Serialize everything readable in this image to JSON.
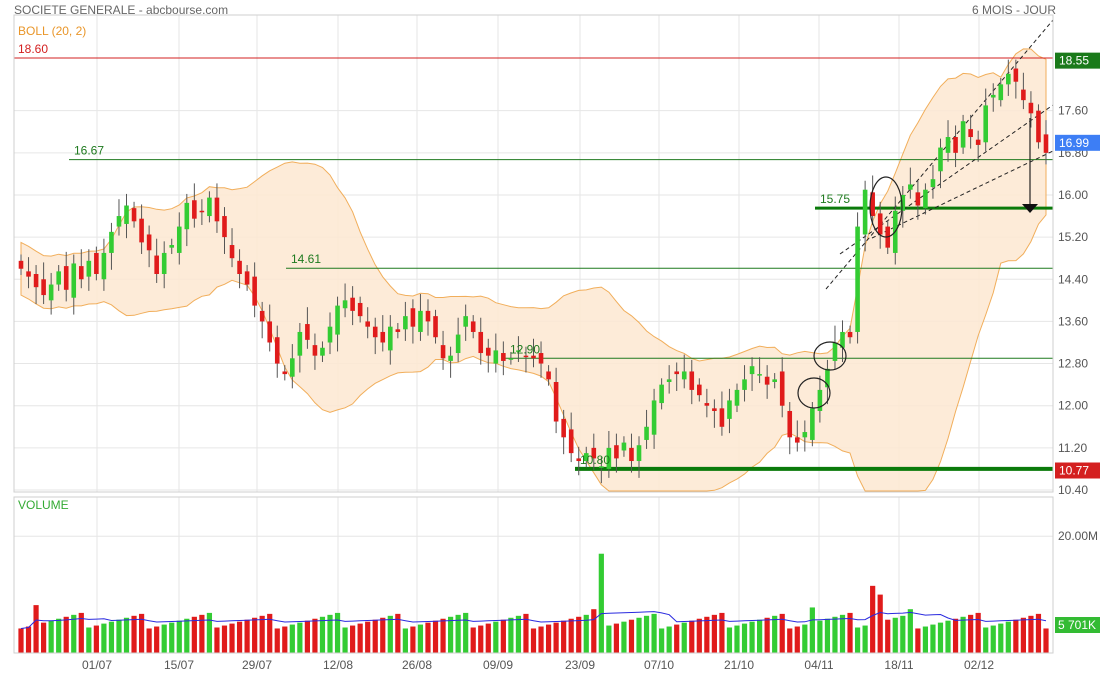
{
  "header": {
    "title": "SOCIETE GENERALE - abcbourse.com",
    "period": "6 MOIS - JOUR"
  },
  "colors": {
    "up": "#33cc33",
    "down": "#e01b1b",
    "band_fill": "#fde9d4",
    "band_line": "#f0a64a",
    "level_line": "#1f7a1f",
    "resistance": "#d32020",
    "volume_ma": "#2a2adf",
    "price_box": "#3d7ef5",
    "support_box": "#d42020"
  },
  "chart_data": [
    {
      "type": "candlestick",
      "indicator_label": "BOLL (20, 2)",
      "x_tick_labels": [
        "01/07",
        "15/07",
        "29/07",
        "12/08",
        "26/08",
        "09/09",
        "23/09",
        "07/10",
        "21/10",
        "04/11",
        "18/11",
        "02/12"
      ],
      "y_ticks": [
        10.4,
        11.2,
        12.0,
        12.8,
        13.6,
        14.4,
        15.2,
        16.0,
        16.8,
        17.6
      ],
      "y_tick_labels": [
        "10.40",
        "11.20",
        "12.00",
        "12.80",
        "13.60",
        "14.40",
        "15.20",
        "16.00",
        "16.80",
        "17.60"
      ],
      "ylim": [
        10.4,
        18.8
      ],
      "grid": true,
      "closes": [
        14.6,
        14.45,
        14.25,
        14.1,
        14.3,
        14.55,
        14.2,
        14.7,
        14.4,
        14.75,
        14.5,
        14.9,
        15.3,
        15.6,
        15.8,
        15.5,
        15.1,
        14.95,
        14.5,
        14.9,
        15.05,
        15.4,
        15.85,
        15.55,
        15.7,
        15.95,
        15.5,
        15.2,
        14.8,
        14.5,
        14.3,
        13.9,
        13.6,
        13.2,
        12.8,
        12.6,
        12.9,
        13.4,
        13.25,
        12.95,
        13.1,
        13.5,
        13.9,
        14.0,
        13.8,
        13.7,
        13.5,
        13.3,
        13.2,
        13.5,
        13.4,
        13.7,
        13.5,
        13.8,
        13.6,
        13.3,
        12.9,
        12.95,
        13.35,
        13.7,
        13.4,
        13.0,
        12.95,
        13.05,
        12.85,
        12.9,
        13.05,
        12.95,
        12.9,
        12.8,
        12.5,
        11.7,
        11.4,
        11.1,
        10.95,
        11.1,
        11.0,
        10.85,
        11.2,
        11.0,
        11.3,
        10.95,
        11.25,
        11.6,
        12.1,
        12.4,
        12.5,
        12.6,
        12.65,
        12.3,
        12.2,
        12.0,
        11.9,
        11.6,
        12.1,
        12.3,
        12.5,
        12.75,
        12.6,
        12.4,
        12.5,
        12.0,
        11.4,
        11.3,
        11.5,
        11.95,
        12.3,
        12.7,
        13.2,
        13.4,
        13.3,
        15.4,
        16.1,
        15.6,
        15.25,
        15.0,
        15.7,
        16.0,
        16.2,
        15.8,
        16.1,
        16.3,
        16.9,
        17.1,
        16.8,
        17.4,
        17.1,
        16.95,
        17.7,
        17.9,
        18.1,
        18.3,
        18.15,
        17.8,
        17.55,
        17.0,
        16.8
      ]
    },
    {
      "type": "bar",
      "label": "VOLUME",
      "y_tick_labels": [
        "20.00M"
      ],
      "ylim": [
        0,
        25
      ],
      "last_value_label": "5 701K"
    }
  ],
  "levels": [
    {
      "value": 18.6,
      "label": "18.60",
      "role": "resistance"
    },
    {
      "value": 16.67,
      "label": "16.67",
      "role": "level"
    },
    {
      "value": 15.75,
      "label": "15.75",
      "role": "support"
    },
    {
      "value": 14.61,
      "label": "14.61",
      "role": "level"
    },
    {
      "value": 12.9,
      "label": "12.90",
      "role": "level"
    },
    {
      "value": 10.8,
      "label": "10.80",
      "role": "support"
    }
  ],
  "price_labels": {
    "resistance_box": "18.55",
    "last_price": "16.99",
    "support_box": "10.77"
  }
}
